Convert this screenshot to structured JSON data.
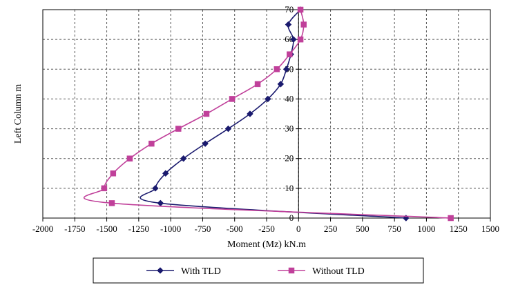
{
  "chart_data": {
    "type": "scatter",
    "xlabel": "Moment (Mz) kN.m",
    "ylabel": "Left Column m",
    "xlim": [
      -2000,
      1500
    ],
    "ylim": [
      0,
      70
    ],
    "xticks": [
      -2000,
      -1750,
      -1500,
      -1250,
      -1000,
      -750,
      -500,
      -250,
      0,
      250,
      500,
      750,
      1000,
      1250,
      1500
    ],
    "yticks": [
      0,
      10,
      20,
      30,
      40,
      50,
      60,
      70
    ],
    "grid": true,
    "smooth": true,
    "legend": "bottom",
    "series": [
      {
        "name": "With TLD",
        "color": "#1a1a6e",
        "marker": "diamond",
        "points": [
          [
            840,
            0
          ],
          [
            -1080,
            5
          ],
          [
            -1120,
            10
          ],
          [
            -1040,
            15
          ],
          [
            -900,
            20
          ],
          [
            -730,
            25
          ],
          [
            -550,
            30
          ],
          [
            -380,
            35
          ],
          [
            -240,
            40
          ],
          [
            -140,
            45
          ],
          [
            -95,
            50
          ],
          [
            -60,
            55
          ],
          [
            -40,
            60
          ],
          [
            -80,
            65
          ],
          [
            15,
            70
          ]
        ]
      },
      {
        "name": "Without TLD",
        "color": "#c0409a",
        "marker": "square",
        "points": [
          [
            1190,
            0
          ],
          [
            -1460,
            5
          ],
          [
            -1520,
            10
          ],
          [
            -1450,
            15
          ],
          [
            -1320,
            20
          ],
          [
            -1150,
            25
          ],
          [
            -940,
            30
          ],
          [
            -720,
            35
          ],
          [
            -520,
            40
          ],
          [
            -320,
            45
          ],
          [
            -170,
            50
          ],
          [
            -70,
            55
          ],
          [
            15,
            60
          ],
          [
            40,
            65
          ],
          [
            15,
            70
          ]
        ]
      }
    ]
  }
}
